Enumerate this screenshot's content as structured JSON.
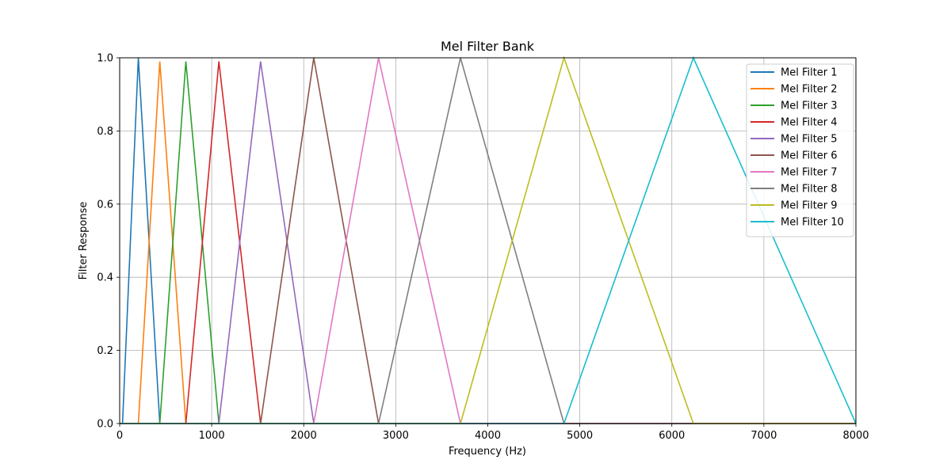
{
  "chart_data": {
    "type": "line",
    "title": "Mel Filter Bank",
    "xlabel": "Frequency (Hz)",
    "ylabel": "Filter Response",
    "xlim": [
      0,
      8000
    ],
    "ylim": [
      0,
      1.0
    ],
    "xticks": [
      0,
      1000,
      2000,
      3000,
      4000,
      5000,
      6000,
      7000,
      8000
    ],
    "xtick_labels": [
      "0",
      "1000",
      "2000",
      "3000",
      "4000",
      "5000",
      "6000",
      "7000",
      "8000"
    ],
    "yticks": [
      0.0,
      0.2,
      0.4,
      0.6,
      0.8,
      1.0
    ],
    "ytick_labels": [
      "0.0",
      "0.2",
      "0.4",
      "0.6",
      "0.8",
      "1.0"
    ],
    "grid": true,
    "legend_position": "top-right",
    "series": [
      {
        "name": "Mel Filter 1",
        "color": "#1f77b4",
        "x": [
          0,
          31,
          203,
          436,
          8000
        ],
        "y": [
          0,
          0,
          1.0,
          0,
          0
        ]
      },
      {
        "name": "Mel Filter 2",
        "color": "#ff7f0e",
        "x": [
          0,
          203,
          436,
          719,
          8000
        ],
        "y": [
          0,
          0,
          0.99,
          0,
          0
        ]
      },
      {
        "name": "Mel Filter 3",
        "color": "#2ca02c",
        "x": [
          0,
          436,
          719,
          1078,
          8000
        ],
        "y": [
          0,
          0,
          0.99,
          0,
          0
        ]
      },
      {
        "name": "Mel Filter 4",
        "color": "#d62728",
        "x": [
          0,
          719,
          1078,
          1531,
          8000
        ],
        "y": [
          0,
          0,
          0.99,
          0,
          0
        ]
      },
      {
        "name": "Mel Filter 5",
        "color": "#9467bd",
        "x": [
          0,
          1078,
          1531,
          2109,
          8000
        ],
        "y": [
          0,
          0,
          0.99,
          0,
          0
        ]
      },
      {
        "name": "Mel Filter 6",
        "color": "#8c564b",
        "x": [
          0,
          1531,
          2109,
          2813,
          8000
        ],
        "y": [
          0,
          0,
          1.0,
          0,
          0
        ]
      },
      {
        "name": "Mel Filter 7",
        "color": "#e377c2",
        "x": [
          0,
          2109,
          2813,
          3703,
          8000
        ],
        "y": [
          0,
          0,
          1.0,
          0,
          0
        ]
      },
      {
        "name": "Mel Filter 8",
        "color": "#7f7f7f",
        "x": [
          0,
          2813,
          3703,
          4828,
          8000
        ],
        "y": [
          0,
          0,
          1.0,
          0,
          0
        ]
      },
      {
        "name": "Mel Filter 9",
        "color": "#bcbd22",
        "x": [
          0,
          3703,
          4828,
          6234,
          8000
        ],
        "y": [
          0,
          0,
          1.0,
          0,
          0
        ]
      },
      {
        "name": "Mel Filter 10",
        "color": "#17becf",
        "x": [
          0,
          4828,
          6234,
          8000
        ],
        "y": [
          0,
          0,
          1.0,
          0
        ]
      }
    ]
  }
}
